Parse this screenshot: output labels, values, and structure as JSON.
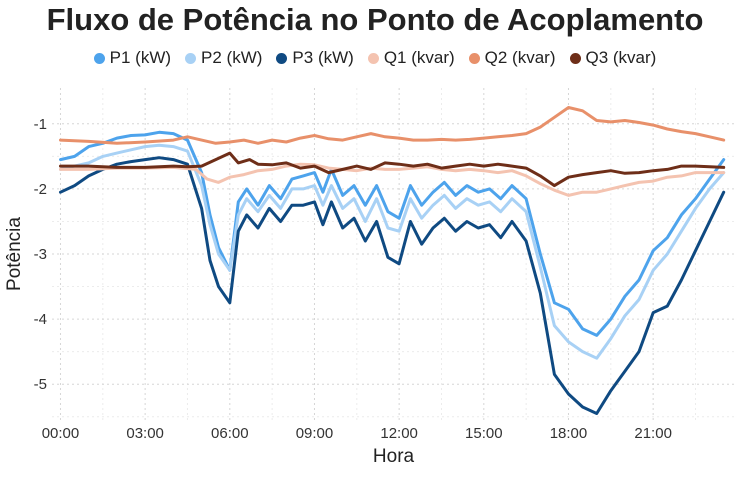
{
  "chart_data": {
    "type": "line",
    "title": "Fluxo de Potência no Ponto de Acoplamento",
    "xlabel": "Hora",
    "ylabel": "Potência",
    "x_ticks": [
      "00:00",
      "03:00",
      "06:00",
      "09:00",
      "12:00",
      "15:00",
      "18:00",
      "21:00"
    ],
    "y_ticks": [
      "-1",
      "-2",
      "-3",
      "-4",
      "-5"
    ],
    "xlim": [
      -0.3,
      23.9
    ],
    "ylim": [
      -5.55,
      -0.45
    ],
    "grid": true,
    "legend_position": "top",
    "series": [
      {
        "name": "P1 (kW)",
        "color": "#4da3ec",
        "points": [
          [
            0,
            -1.55
          ],
          [
            0.5,
            -1.5
          ],
          [
            1,
            -1.35
          ],
          [
            1.5,
            -1.3
          ],
          [
            2,
            -1.22
          ],
          [
            2.5,
            -1.18
          ],
          [
            3,
            -1.17
          ],
          [
            3.5,
            -1.13
          ],
          [
            4,
            -1.15
          ],
          [
            4.5,
            -1.25
          ],
          [
            5,
            -1.75
          ],
          [
            5.3,
            -2.4
          ],
          [
            5.6,
            -2.9
          ],
          [
            6,
            -3.25
          ],
          [
            6.3,
            -2.2
          ],
          [
            6.6,
            -2.0
          ],
          [
            7,
            -2.25
          ],
          [
            7.4,
            -1.95
          ],
          [
            7.8,
            -2.15
          ],
          [
            8.2,
            -1.85
          ],
          [
            8.6,
            -1.8
          ],
          [
            9,
            -1.75
          ],
          [
            9.3,
            -2.05
          ],
          [
            9.6,
            -1.7
          ],
          [
            10,
            -2.1
          ],
          [
            10.4,
            -1.95
          ],
          [
            10.8,
            -2.25
          ],
          [
            11.2,
            -1.95
          ],
          [
            11.6,
            -2.35
          ],
          [
            12,
            -2.45
          ],
          [
            12.4,
            -1.95
          ],
          [
            12.8,
            -2.25
          ],
          [
            13.2,
            -2.05
          ],
          [
            13.6,
            -1.9
          ],
          [
            14,
            -2.1
          ],
          [
            14.4,
            -1.95
          ],
          [
            14.8,
            -2.05
          ],
          [
            15.2,
            -2.0
          ],
          [
            15.6,
            -2.15
          ],
          [
            16,
            -1.95
          ],
          [
            16.5,
            -2.15
          ],
          [
            17,
            -3.0
          ],
          [
            17.5,
            -3.75
          ],
          [
            18,
            -3.85
          ],
          [
            18.5,
            -4.15
          ],
          [
            19,
            -4.25
          ],
          [
            19.5,
            -4.0
          ],
          [
            20,
            -3.65
          ],
          [
            20.5,
            -3.4
          ],
          [
            21,
            -2.95
          ],
          [
            21.5,
            -2.75
          ],
          [
            22,
            -2.4
          ],
          [
            22.5,
            -2.15
          ],
          [
            23,
            -1.85
          ],
          [
            23.5,
            -1.55
          ]
        ]
      },
      {
        "name": "P2 (kW)",
        "color": "#a8d1f5",
        "points": [
          [
            0,
            -1.7
          ],
          [
            0.5,
            -1.65
          ],
          [
            1,
            -1.6
          ],
          [
            1.5,
            -1.5
          ],
          [
            2,
            -1.45
          ],
          [
            2.5,
            -1.4
          ],
          [
            3,
            -1.35
          ],
          [
            3.5,
            -1.33
          ],
          [
            4,
            -1.35
          ],
          [
            4.5,
            -1.42
          ],
          [
            5,
            -1.95
          ],
          [
            5.3,
            -2.55
          ],
          [
            5.6,
            -3.0
          ],
          [
            6,
            -3.25
          ],
          [
            6.3,
            -2.4
          ],
          [
            6.6,
            -2.15
          ],
          [
            7,
            -2.35
          ],
          [
            7.4,
            -2.1
          ],
          [
            7.8,
            -2.3
          ],
          [
            8.2,
            -2.0
          ],
          [
            8.6,
            -2.0
          ],
          [
            9,
            -1.95
          ],
          [
            9.3,
            -2.25
          ],
          [
            9.6,
            -1.95
          ],
          [
            10,
            -2.3
          ],
          [
            10.4,
            -2.15
          ],
          [
            10.8,
            -2.5
          ],
          [
            11.2,
            -2.15
          ],
          [
            11.6,
            -2.6
          ],
          [
            12,
            -2.65
          ],
          [
            12.4,
            -2.15
          ],
          [
            12.8,
            -2.45
          ],
          [
            13.2,
            -2.25
          ],
          [
            13.6,
            -2.1
          ],
          [
            14,
            -2.3
          ],
          [
            14.4,
            -2.15
          ],
          [
            14.8,
            -2.25
          ],
          [
            15.2,
            -2.2
          ],
          [
            15.6,
            -2.35
          ],
          [
            16,
            -2.15
          ],
          [
            16.5,
            -2.35
          ],
          [
            17,
            -3.2
          ],
          [
            17.5,
            -4.1
          ],
          [
            18,
            -4.35
          ],
          [
            18.5,
            -4.5
          ],
          [
            19,
            -4.6
          ],
          [
            19.5,
            -4.3
          ],
          [
            20,
            -3.95
          ],
          [
            20.5,
            -3.7
          ],
          [
            21,
            -3.25
          ],
          [
            21.5,
            -3.0
          ],
          [
            22,
            -2.65
          ],
          [
            22.5,
            -2.3
          ],
          [
            23,
            -2.0
          ],
          [
            23.5,
            -1.75
          ]
        ]
      },
      {
        "name": "P3 (kW)",
        "color": "#0f4a82",
        "points": [
          [
            0,
            -2.05
          ],
          [
            0.5,
            -1.95
          ],
          [
            1,
            -1.8
          ],
          [
            1.5,
            -1.7
          ],
          [
            2,
            -1.62
          ],
          [
            2.5,
            -1.58
          ],
          [
            3,
            -1.55
          ],
          [
            3.5,
            -1.52
          ],
          [
            4,
            -1.55
          ],
          [
            4.5,
            -1.62
          ],
          [
            5,
            -2.3
          ],
          [
            5.3,
            -3.1
          ],
          [
            5.6,
            -3.5
          ],
          [
            6,
            -3.75
          ],
          [
            6.3,
            -2.65
          ],
          [
            6.6,
            -2.4
          ],
          [
            7,
            -2.6
          ],
          [
            7.4,
            -2.3
          ],
          [
            7.8,
            -2.5
          ],
          [
            8.2,
            -2.25
          ],
          [
            8.6,
            -2.25
          ],
          [
            9,
            -2.2
          ],
          [
            9.3,
            -2.55
          ],
          [
            9.6,
            -2.2
          ],
          [
            10,
            -2.6
          ],
          [
            10.4,
            -2.45
          ],
          [
            10.8,
            -2.8
          ],
          [
            11.2,
            -2.5
          ],
          [
            11.6,
            -3.05
          ],
          [
            12,
            -3.15
          ],
          [
            12.4,
            -2.5
          ],
          [
            12.8,
            -2.85
          ],
          [
            13.2,
            -2.6
          ],
          [
            13.6,
            -2.45
          ],
          [
            14,
            -2.65
          ],
          [
            14.4,
            -2.5
          ],
          [
            14.8,
            -2.6
          ],
          [
            15.2,
            -2.55
          ],
          [
            15.6,
            -2.75
          ],
          [
            16,
            -2.5
          ],
          [
            16.5,
            -2.8
          ],
          [
            17,
            -3.6
          ],
          [
            17.5,
            -4.85
          ],
          [
            18,
            -5.15
          ],
          [
            18.5,
            -5.35
          ],
          [
            19,
            -5.45
          ],
          [
            19.5,
            -5.1
          ],
          [
            20,
            -4.8
          ],
          [
            20.5,
            -4.5
          ],
          [
            21,
            -3.9
          ],
          [
            21.5,
            -3.8
          ],
          [
            22,
            -3.4
          ],
          [
            22.5,
            -2.95
          ],
          [
            23,
            -2.5
          ],
          [
            23.5,
            -2.05
          ]
        ]
      },
      {
        "name": "Q1 (kvar)",
        "color": "#f4c3b0",
        "points": [
          [
            0,
            -1.7
          ],
          [
            1,
            -1.7
          ],
          [
            2,
            -1.68
          ],
          [
            3,
            -1.68
          ],
          [
            4,
            -1.67
          ],
          [
            4.8,
            -1.7
          ],
          [
            5.2,
            -1.85
          ],
          [
            5.6,
            -1.9
          ],
          [
            6,
            -1.82
          ],
          [
            6.5,
            -1.78
          ],
          [
            7,
            -1.72
          ],
          [
            7.5,
            -1.7
          ],
          [
            8,
            -1.65
          ],
          [
            8.5,
            -1.62
          ],
          [
            9,
            -1.63
          ],
          [
            9.5,
            -1.68
          ],
          [
            10,
            -1.7
          ],
          [
            10.5,
            -1.72
          ],
          [
            11,
            -1.68
          ],
          [
            11.5,
            -1.7
          ],
          [
            12,
            -1.7
          ],
          [
            12.5,
            -1.68
          ],
          [
            13,
            -1.66
          ],
          [
            13.5,
            -1.7
          ],
          [
            14,
            -1.72
          ],
          [
            14.5,
            -1.7
          ],
          [
            15,
            -1.72
          ],
          [
            15.5,
            -1.75
          ],
          [
            16,
            -1.72
          ],
          [
            16.5,
            -1.8
          ],
          [
            17,
            -1.92
          ],
          [
            17.5,
            -2.02
          ],
          [
            18,
            -2.1
          ],
          [
            18.5,
            -2.05
          ],
          [
            19,
            -2.05
          ],
          [
            19.5,
            -2.0
          ],
          [
            20,
            -1.95
          ],
          [
            20.5,
            -1.9
          ],
          [
            21,
            -1.88
          ],
          [
            21.5,
            -1.82
          ],
          [
            22,
            -1.8
          ],
          [
            22.5,
            -1.75
          ],
          [
            23,
            -1.75
          ],
          [
            23.5,
            -1.75
          ]
        ]
      },
      {
        "name": "Q2 (kvar)",
        "color": "#e8906a",
        "points": [
          [
            0,
            -1.25
          ],
          [
            1,
            -1.27
          ],
          [
            2,
            -1.3
          ],
          [
            3,
            -1.28
          ],
          [
            4,
            -1.25
          ],
          [
            4.5,
            -1.2
          ],
          [
            5,
            -1.25
          ],
          [
            5.5,
            -1.3
          ],
          [
            6,
            -1.28
          ],
          [
            6.5,
            -1.25
          ],
          [
            7,
            -1.3
          ],
          [
            7.5,
            -1.25
          ],
          [
            8,
            -1.28
          ],
          [
            8.5,
            -1.22
          ],
          [
            9,
            -1.18
          ],
          [
            9.5,
            -1.23
          ],
          [
            10,
            -1.25
          ],
          [
            10.5,
            -1.2
          ],
          [
            11,
            -1.15
          ],
          [
            11.5,
            -1.2
          ],
          [
            12,
            -1.22
          ],
          [
            12.5,
            -1.25
          ],
          [
            13,
            -1.25
          ],
          [
            13.5,
            -1.24
          ],
          [
            14,
            -1.25
          ],
          [
            14.5,
            -1.24
          ],
          [
            15,
            -1.22
          ],
          [
            15.5,
            -1.2
          ],
          [
            16,
            -1.18
          ],
          [
            16.5,
            -1.15
          ],
          [
            17,
            -1.05
          ],
          [
            17.5,
            -0.9
          ],
          [
            18,
            -0.75
          ],
          [
            18.5,
            -0.8
          ],
          [
            19,
            -0.95
          ],
          [
            19.5,
            -0.97
          ],
          [
            20,
            -0.95
          ],
          [
            20.5,
            -0.98
          ],
          [
            21,
            -1.02
          ],
          [
            21.5,
            -1.08
          ],
          [
            22,
            -1.12
          ],
          [
            22.5,
            -1.15
          ],
          [
            23,
            -1.2
          ],
          [
            23.5,
            -1.25
          ]
        ]
      },
      {
        "name": "Q3 (kvar)",
        "color": "#6e2e18",
        "points": [
          [
            0,
            -1.65
          ],
          [
            1,
            -1.65
          ],
          [
            2,
            -1.67
          ],
          [
            3,
            -1.67
          ],
          [
            4,
            -1.65
          ],
          [
            4.5,
            -1.66
          ],
          [
            5,
            -1.65
          ],
          [
            5.5,
            -1.55
          ],
          [
            6,
            -1.45
          ],
          [
            6.3,
            -1.6
          ],
          [
            6.7,
            -1.55
          ],
          [
            7,
            -1.62
          ],
          [
            7.5,
            -1.63
          ],
          [
            8,
            -1.6
          ],
          [
            8.5,
            -1.68
          ],
          [
            9,
            -1.65
          ],
          [
            9.5,
            -1.75
          ],
          [
            10,
            -1.7
          ],
          [
            10.5,
            -1.65
          ],
          [
            11,
            -1.7
          ],
          [
            11.5,
            -1.6
          ],
          [
            12,
            -1.62
          ],
          [
            12.5,
            -1.65
          ],
          [
            13,
            -1.62
          ],
          [
            13.5,
            -1.68
          ],
          [
            14,
            -1.65
          ],
          [
            14.5,
            -1.62
          ],
          [
            15,
            -1.65
          ],
          [
            15.5,
            -1.62
          ],
          [
            16,
            -1.65
          ],
          [
            16.5,
            -1.68
          ],
          [
            17,
            -1.8
          ],
          [
            17.5,
            -1.95
          ],
          [
            18,
            -1.82
          ],
          [
            18.5,
            -1.78
          ],
          [
            19,
            -1.75
          ],
          [
            19.5,
            -1.72
          ],
          [
            20,
            -1.76
          ],
          [
            20.5,
            -1.75
          ],
          [
            21,
            -1.72
          ],
          [
            21.5,
            -1.7
          ],
          [
            22,
            -1.65
          ],
          [
            22.5,
            -1.65
          ],
          [
            23,
            -1.66
          ],
          [
            23.5,
            -1.67
          ]
        ]
      }
    ]
  }
}
